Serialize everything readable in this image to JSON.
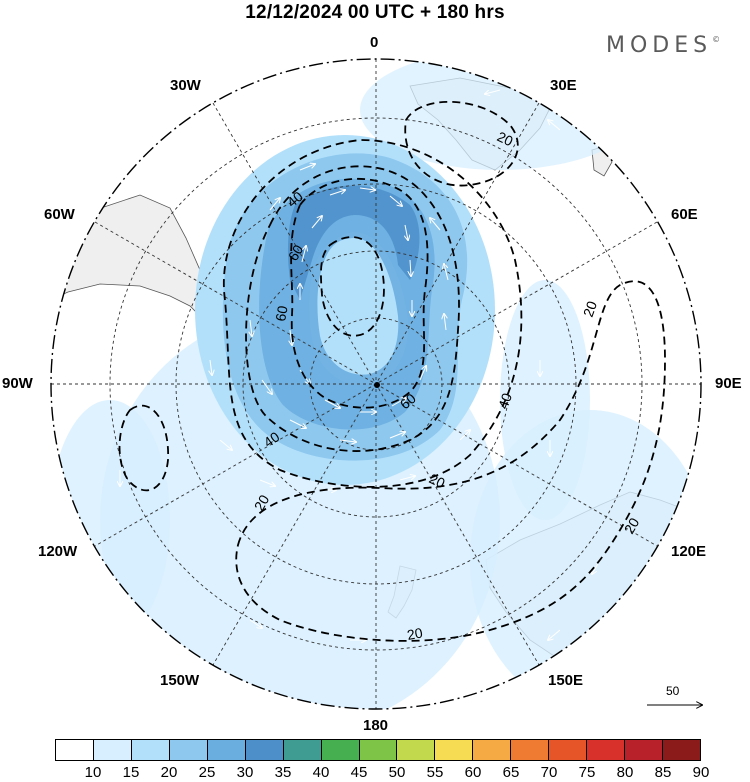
{
  "header": {
    "title": "12/12/2024  00 UTC  + 180 hrs",
    "brand": "MODES",
    "brand_mark": "©"
  },
  "map": {
    "projection": "south-polar-stereographic",
    "longitude_labels": {
      "top": "0",
      "top_right": "30E",
      "right_upper": "60E",
      "right": "90E",
      "right_lower": "120E",
      "bottom_right": "150E",
      "bottom": "180",
      "bottom_left": "150W",
      "left_lower": "120W",
      "left": "90W",
      "left_upper": "60W",
      "top_left": "30W"
    },
    "contour_labels": [
      "20",
      "40",
      "60",
      "60",
      "40",
      "40",
      "60",
      "20",
      "20",
      "20",
      "20",
      "20"
    ],
    "reference_vector": "50",
    "colors": {
      "land": "#f0f0f0",
      "ocean": "#ffffff",
      "coast": "#555555"
    }
  },
  "colorbar": {
    "colors": [
      "#ffffff",
      "#d7efff",
      "#b2e0fb",
      "#8ec8ee",
      "#6aaee0",
      "#4d8fc9",
      "#3f9c92",
      "#46b050",
      "#7dc447",
      "#c2d94d",
      "#f5dc53",
      "#f5aa44",
      "#ef7b32",
      "#e55528",
      "#d8312c",
      "#b8202a",
      "#8b1a1a"
    ],
    "ticks": [
      "10",
      "15",
      "20",
      "25",
      "30",
      "35",
      "40",
      "45",
      "50",
      "55",
      "60",
      "65",
      "70",
      "75",
      "80",
      "85",
      "90"
    ]
  }
}
